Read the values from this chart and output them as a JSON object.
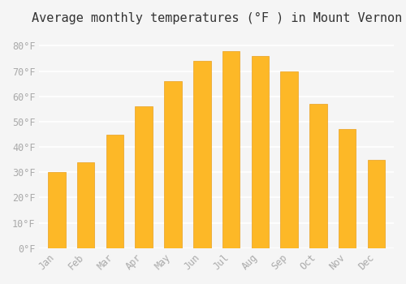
{
  "title": "Average monthly temperatures (°F ) in Mount Vernon",
  "months": [
    "Jan",
    "Feb",
    "Mar",
    "Apr",
    "May",
    "Jun",
    "Jul",
    "Aug",
    "Sep",
    "Oct",
    "Nov",
    "Dec"
  ],
  "temperatures": [
    30,
    34,
    45,
    56,
    66,
    74,
    78,
    76,
    70,
    57,
    47,
    35
  ],
  "bar_color": "#FDB827",
  "bar_edge_color": "#E8A020",
  "background_color": "#F5F5F5",
  "grid_color": "#FFFFFF",
  "text_color": "#AAAAAA",
  "ylim": [
    0,
    85
  ],
  "yticks": [
    0,
    10,
    20,
    30,
    40,
    50,
    60,
    70,
    80
  ],
  "ytick_labels": [
    "0°F",
    "10°F",
    "20°F",
    "30°F",
    "40°F",
    "50°F",
    "60°F",
    "70°F",
    "80°F"
  ],
  "title_fontsize": 11,
  "tick_fontsize": 8.5,
  "font_family": "monospace"
}
